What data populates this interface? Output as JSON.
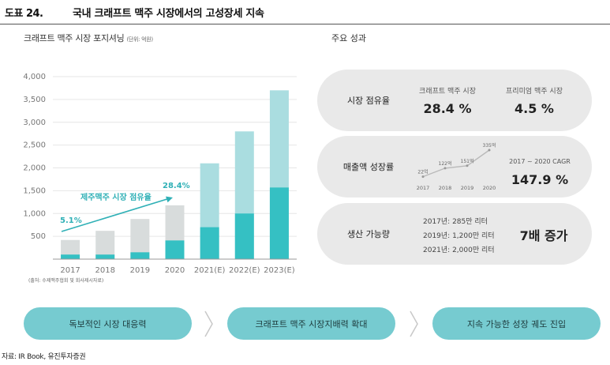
{
  "header": {
    "fig_no": "도표 24.",
    "title": "국내 크래프트 맥주 시장에서의 고성장세 지속"
  },
  "chart_title": "크래프트 맥주 시장 포지셔닝",
  "chart_unit": "(단위: 억원)",
  "chart_note": "(출처: 수제맥주협회 및 회사제시자료)",
  "chart_data": {
    "type": "bar",
    "categories": [
      "2017",
      "2018",
      "2019",
      "2020",
      "2021(E)",
      "2022(E)",
      "2023(E)"
    ],
    "series": [
      {
        "values": [
          100,
          100,
          150,
          410,
          700,
          1000,
          1570
        ]
      },
      {
        "values": [
          420,
          620,
          880,
          1180,
          2100,
          2800,
          3700
        ]
      }
    ],
    "yticks": [
      "4,000",
      "3,500",
      "3,000",
      "2,500",
      "2,000",
      "1,500",
      "1,000",
      "500"
    ],
    "ylim": [
      0,
      4000
    ],
    "annotations": {
      "trend_label": "제주맥주 시장 점유율",
      "start_share": "5.1%",
      "end_share": "28.4%"
    },
    "colors": {
      "bottom_2017_2020": "#d8dcdc",
      "bottom_forecast": "#aadde0",
      "top": "#35c0c3",
      "axis": "#999999",
      "accent": "#2fb0b6"
    }
  },
  "performance": {
    "title": "주요 성과",
    "card1": {
      "label": "시장 점유율",
      "h1": "크래프트 맥주 시장",
      "v1": "28.4 %",
      "h2": "프리미엄 맥주 시장",
      "v2": "4.5 %"
    },
    "card2": {
      "label": "매출액 성장률",
      "mini": {
        "years": [
          "2017",
          "2018",
          "2019",
          "2020"
        ],
        "values": [
          22,
          122,
          151,
          335
        ],
        "value_labels": [
          "22억",
          "122억",
          "151억",
          "335억"
        ]
      },
      "h": "2017 ~ 2020 CAGR",
      "v": "147.9 %"
    },
    "card3": {
      "label": "생산 가능량",
      "lines": [
        "2017년: 285만 리터",
        "2019년: 1,200만 리터",
        "2021년: 2,000만 리터"
      ],
      "v": "7배 증가"
    }
  },
  "pills": [
    "독보적인 시장 대응력",
    "크래프트 맥주 시장지배력 확대",
    "지속 가능한 성장 궤도 진입"
  ],
  "source": "자료: IR Book, 유진투자증권"
}
